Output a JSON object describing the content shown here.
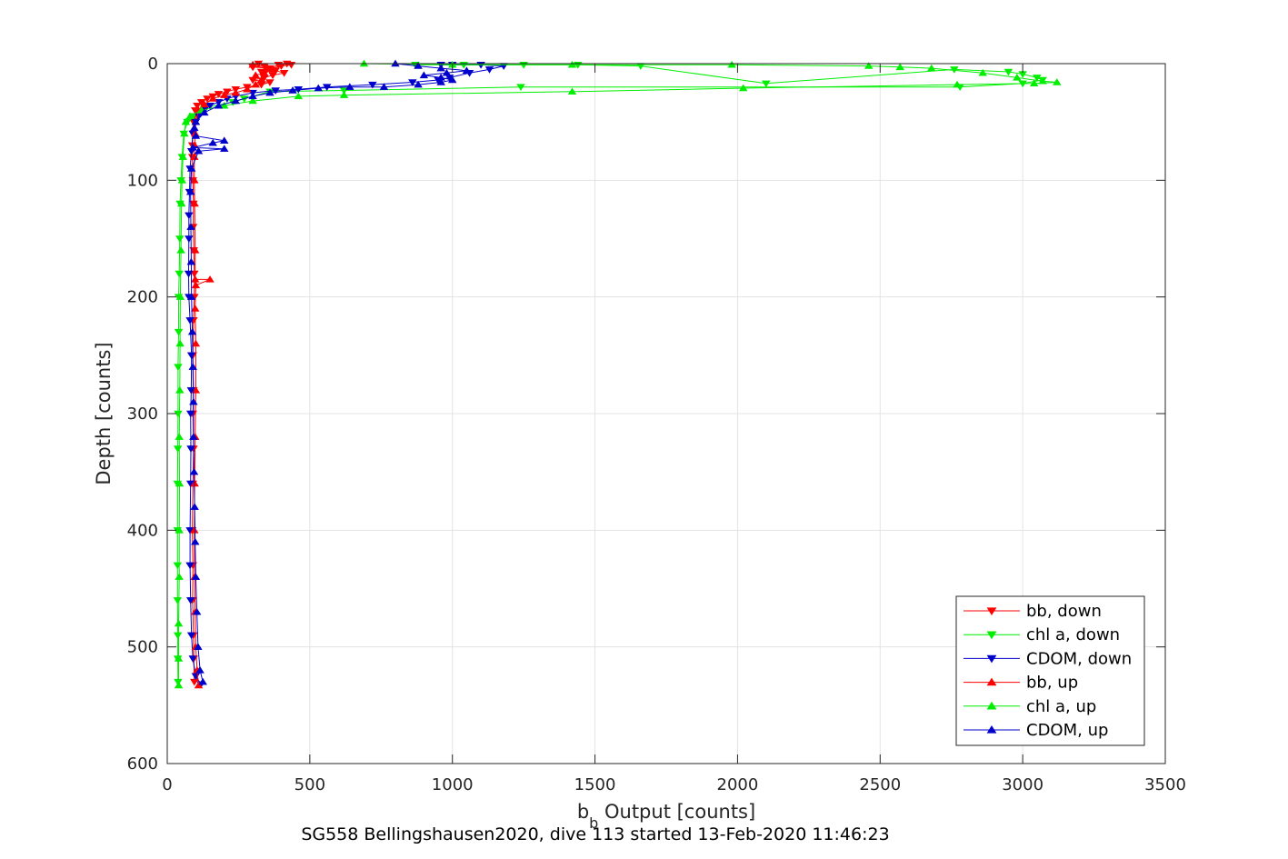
{
  "chart_data": {
    "type": "line",
    "xlabel_main": "b",
    "xlabel_sub": "b",
    "xlabel_rest": " Output [counts]",
    "ylabel": "Depth [counts]",
    "caption": "SG558 Bellingshausen2020, dive 113 started 13-Feb-2020 11:46:23",
    "xlim": [
      0,
      3500
    ],
    "ylim": [
      0,
      600
    ],
    "y_reversed": true,
    "grid": true,
    "legend_position": "bottom-right",
    "x_ticks": [
      0,
      500,
      1000,
      1500,
      2000,
      2500,
      3000,
      3500
    ],
    "x_tick_labels": [
      "0",
      "500",
      "1000",
      "1500",
      "2000",
      "2500",
      "3000",
      "3500"
    ],
    "y_ticks": [
      0,
      100,
      200,
      300,
      400,
      500,
      600
    ],
    "y_tick_labels": [
      "0",
      "100",
      "200",
      "300",
      "400",
      "500",
      "600"
    ],
    "series": [
      {
        "name": "bb, down",
        "color": "#ff0000",
        "marker": "triangle-down",
        "points": [
          [
            320,
            0
          ],
          [
            340,
            2
          ],
          [
            300,
            3
          ],
          [
            360,
            4
          ],
          [
            390,
            1
          ],
          [
            420,
            0
          ],
          [
            435,
            1
          ],
          [
            400,
            2
          ],
          [
            350,
            5
          ],
          [
            330,
            7
          ],
          [
            380,
            6
          ],
          [
            410,
            8
          ],
          [
            370,
            10
          ],
          [
            340,
            12
          ],
          [
            300,
            14
          ],
          [
            360,
            16
          ],
          [
            330,
            18
          ],
          [
            280,
            20
          ],
          [
            240,
            22
          ],
          [
            210,
            24
          ],
          [
            180,
            26
          ],
          [
            160,
            28
          ],
          [
            140,
            30
          ],
          [
            120,
            33
          ],
          [
            105,
            36
          ],
          [
            98,
            40
          ],
          [
            95,
            45
          ],
          [
            92,
            50
          ],
          [
            90,
            60
          ],
          [
            88,
            70
          ],
          [
            88,
            80
          ],
          [
            90,
            100
          ],
          [
            92,
            120
          ],
          [
            91,
            140
          ],
          [
            93,
            160
          ],
          [
            95,
            180
          ],
          [
            95,
            200
          ],
          [
            92,
            220
          ],
          [
            90,
            250
          ],
          [
            92,
            280
          ],
          [
            90,
            300
          ],
          [
            92,
            330
          ],
          [
            90,
            360
          ],
          [
            88,
            400
          ],
          [
            90,
            430
          ],
          [
            89,
            460
          ],
          [
            92,
            490
          ],
          [
            93,
            510
          ],
          [
            95,
            530
          ]
        ]
      },
      {
        "name": "chl a, down",
        "color": "#00ee00",
        "marker": "triangle-down",
        "points": [
          [
            870,
            1
          ],
          [
            1040,
            1
          ],
          [
            1250,
            1
          ],
          [
            1440,
            1
          ],
          [
            1660,
            2
          ],
          [
            2100,
            17
          ],
          [
            2760,
            5
          ],
          [
            2950,
            7
          ],
          [
            3000,
            9
          ],
          [
            3050,
            12
          ],
          [
            3070,
            14
          ],
          [
            3000,
            17
          ],
          [
            2780,
            20
          ],
          [
            1240,
            20
          ],
          [
            620,
            23
          ],
          [
            360,
            24
          ],
          [
            270,
            30
          ],
          [
            230,
            33
          ],
          [
            130,
            38
          ],
          [
            90,
            45
          ],
          [
            70,
            50
          ],
          [
            58,
            60
          ],
          [
            52,
            80
          ],
          [
            48,
            100
          ],
          [
            45,
            120
          ],
          [
            44,
            150
          ],
          [
            42,
            180
          ],
          [
            40,
            200
          ],
          [
            40,
            230
          ],
          [
            38,
            260
          ],
          [
            38,
            300
          ],
          [
            37,
            330
          ],
          [
            36,
            360
          ],
          [
            36,
            400
          ],
          [
            36,
            430
          ],
          [
            36,
            460
          ],
          [
            37,
            490
          ],
          [
            37,
            510
          ],
          [
            38,
            530
          ]
        ]
      },
      {
        "name": "CDOM, down",
        "color": "#0000cc",
        "marker": "triangle-down",
        "points": [
          [
            960,
            1
          ],
          [
            1000,
            1
          ],
          [
            1100,
            1
          ],
          [
            1180,
            2
          ],
          [
            1130,
            5
          ],
          [
            1060,
            8
          ],
          [
            990,
            12
          ],
          [
            950,
            14
          ],
          [
            860,
            16
          ],
          [
            720,
            18
          ],
          [
            560,
            20
          ],
          [
            460,
            22
          ],
          [
            380,
            23
          ],
          [
            300,
            25
          ],
          [
            240,
            28
          ],
          [
            210,
            30
          ],
          [
            180,
            33
          ],
          [
            150,
            36
          ],
          [
            130,
            40
          ],
          [
            110,
            45
          ],
          [
            100,
            50
          ],
          [
            90,
            60
          ],
          [
            85,
            75
          ],
          [
            80,
            90
          ],
          [
            78,
            110
          ],
          [
            76,
            130
          ],
          [
            76,
            150
          ],
          [
            75,
            180
          ],
          [
            76,
            200
          ],
          [
            80,
            220
          ],
          [
            85,
            250
          ],
          [
            84,
            280
          ],
          [
            82,
            300
          ],
          [
            83,
            330
          ],
          [
            82,
            360
          ],
          [
            80,
            400
          ],
          [
            80,
            430
          ],
          [
            82,
            460
          ],
          [
            85,
            490
          ],
          [
            90,
            510
          ],
          [
            100,
            525
          ],
          [
            118,
            532
          ]
        ]
      },
      {
        "name": "bb, up",
        "color": "#ff0000",
        "marker": "triangle-up",
        "points": [
          [
            110,
            533
          ],
          [
            105,
            520
          ],
          [
            100,
            500
          ],
          [
            98,
            470
          ],
          [
            96,
            440
          ],
          [
            95,
            400
          ],
          [
            96,
            360
          ],
          [
            98,
            320
          ],
          [
            100,
            280
          ],
          [
            100,
            240
          ],
          [
            98,
            210
          ],
          [
            100,
            190
          ],
          [
            150,
            185
          ],
          [
            98,
            185
          ],
          [
            98,
            160
          ],
          [
            96,
            120
          ],
          [
            95,
            100
          ],
          [
            95,
            80
          ],
          [
            96,
            70
          ],
          [
            98,
            60
          ],
          [
            100,
            50
          ],
          [
            110,
            40
          ],
          [
            130,
            35
          ],
          [
            160,
            30
          ],
          [
            200,
            27
          ],
          [
            240,
            25
          ],
          [
            280,
            22
          ],
          [
            310,
            18
          ],
          [
            330,
            14
          ],
          [
            310,
            10
          ],
          [
            340,
            8
          ],
          [
            370,
            5
          ],
          [
            350,
            3
          ],
          [
            300,
            1
          ]
        ]
      },
      {
        "name": "chl a, up",
        "color": "#00ee00",
        "marker": "triangle-up",
        "points": [
          [
            40,
            533
          ],
          [
            40,
            510
          ],
          [
            40,
            480
          ],
          [
            42,
            440
          ],
          [
            42,
            400
          ],
          [
            43,
            360
          ],
          [
            42,
            320
          ],
          [
            44,
            280
          ],
          [
            45,
            240
          ],
          [
            46,
            200
          ],
          [
            48,
            160
          ],
          [
            50,
            120
          ],
          [
            52,
            100
          ],
          [
            55,
            80
          ],
          [
            60,
            60
          ],
          [
            65,
            50
          ],
          [
            80,
            45
          ],
          [
            120,
            40
          ],
          [
            200,
            36
          ],
          [
            300,
            32
          ],
          [
            460,
            28
          ],
          [
            620,
            27
          ],
          [
            1420,
            24
          ],
          [
            2020,
            21
          ],
          [
            2770,
            18
          ],
          [
            3040,
            17
          ],
          [
            3120,
            16
          ],
          [
            3070,
            15
          ],
          [
            2980,
            12
          ],
          [
            2860,
            8
          ],
          [
            2680,
            4
          ],
          [
            2570,
            3
          ],
          [
            2460,
            2
          ],
          [
            1980,
            1
          ],
          [
            1420,
            1
          ],
          [
            1000,
            1
          ],
          [
            690,
            0
          ]
        ]
      },
      {
        "name": "CDOM, up",
        "color": "#0000cc",
        "marker": "triangle-up",
        "points": [
          [
            125,
            530
          ],
          [
            115,
            520
          ],
          [
            108,
            500
          ],
          [
            104,
            470
          ],
          [
            100,
            440
          ],
          [
            98,
            410
          ],
          [
            96,
            380
          ],
          [
            94,
            350
          ],
          [
            92,
            320
          ],
          [
            92,
            290
          ],
          [
            90,
            260
          ],
          [
            88,
            230
          ],
          [
            85,
            200
          ],
          [
            84,
            170
          ],
          [
            83,
            140
          ],
          [
            82,
            110
          ],
          [
            85,
            90
          ],
          [
            110,
            75
          ],
          [
            200,
            73
          ],
          [
            90,
            72
          ],
          [
            160,
            68
          ],
          [
            200,
            66
          ],
          [
            100,
            62
          ],
          [
            95,
            55
          ],
          [
            100,
            50
          ],
          [
            130,
            42
          ],
          [
            180,
            36
          ],
          [
            240,
            32
          ],
          [
            300,
            28
          ],
          [
            360,
            25
          ],
          [
            440,
            23
          ],
          [
            530,
            21
          ],
          [
            640,
            20
          ],
          [
            760,
            20
          ],
          [
            880,
            18
          ],
          [
            960,
            16
          ],
          [
            1000,
            14
          ],
          [
            960,
            12
          ],
          [
            900,
            10
          ],
          [
            980,
            8
          ],
          [
            1050,
            6
          ],
          [
            960,
            4
          ],
          [
            880,
            2
          ],
          [
            800,
            0
          ]
        ]
      }
    ]
  }
}
